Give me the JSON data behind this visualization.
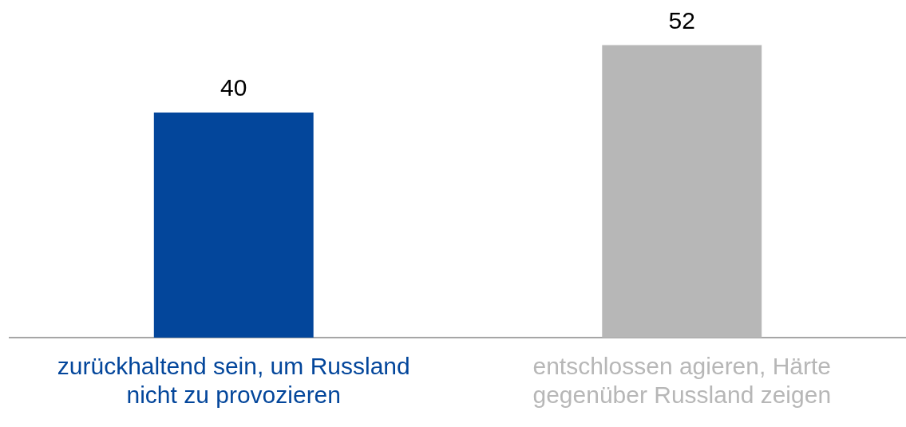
{
  "chart_data": {
    "type": "bar",
    "categories": [
      "zurückhaltend sein, um Russland nicht zu provozieren",
      "entschlossen agieren, Härte gegenüber Russland zeigen"
    ],
    "values": [
      40,
      52
    ],
    "colors": [
      "#03469b",
      "#b7b7b7"
    ],
    "data_labels": true,
    "grid": false,
    "legend": false
  }
}
